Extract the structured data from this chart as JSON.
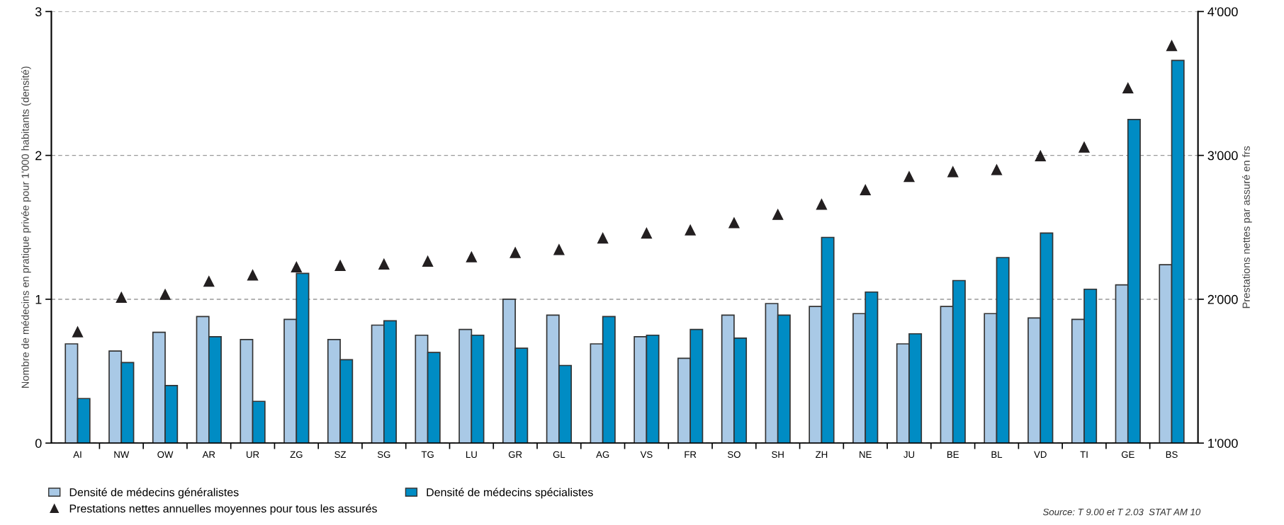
{
  "chart_data": {
    "type": "bar",
    "categories": [
      "AI",
      "NW",
      "OW",
      "AR",
      "UR",
      "ZG",
      "SZ",
      "SG",
      "TG",
      "LU",
      "GR",
      "GL",
      "AG",
      "VS",
      "FR",
      "SO",
      "SH",
      "ZH",
      "NE",
      "JU",
      "BE",
      "BL",
      "VD",
      "TI",
      "GE",
      "BS"
    ],
    "series": [
      {
        "name": "Densité de médecins généralistes",
        "color": "#a9c9e6",
        "values": [
          0.69,
          0.64,
          0.77,
          0.88,
          0.72,
          0.86,
          0.72,
          0.82,
          0.75,
          0.79,
          1.0,
          0.89,
          0.69,
          0.74,
          0.59,
          0.89,
          0.97,
          0.95,
          0.9,
          0.69,
          0.95,
          0.9,
          0.87,
          0.86,
          1.1,
          1.24
        ]
      },
      {
        "name": "Densité de médecins spécialistes",
        "color": "#008cc4",
        "values": [
          0.31,
          0.56,
          0.4,
          0.74,
          0.29,
          1.18,
          0.58,
          0.85,
          0.63,
          0.75,
          0.66,
          0.54,
          0.88,
          0.75,
          0.79,
          0.73,
          0.89,
          1.43,
          1.05,
          0.76,
          1.13,
          1.29,
          1.46,
          1.07,
          2.25,
          2.66
        ]
      },
      {
        "name": "Prestations nettes annuelles moyennes pour tous les assurés",
        "type": "scatter",
        "axis": "y2",
        "marker": "triangle",
        "color": "#231f20",
        "values": [
          1773,
          2013,
          2033,
          2124,
          2168,
          2224,
          2234,
          2244,
          2264,
          2294,
          2324,
          2345,
          2425,
          2459,
          2481,
          2531,
          2589,
          2660,
          2760,
          2852,
          2886,
          2900,
          2997,
          3057,
          3468,
          3763
        ]
      }
    ],
    "ylabel": "Nombre de médecins en pratique privée pour 1'000 habitants (densité)",
    "y2label": "Prestations nettes par assuré en frs",
    "ylim": [
      0,
      3
    ],
    "yticks": [
      0,
      1,
      2,
      3
    ],
    "y2lim": [
      1000,
      4000
    ],
    "y2ticks": [
      {
        "value": 1000,
        "label": "1'000"
      },
      {
        "value": 2000,
        "label": "2'000"
      },
      {
        "value": 3000,
        "label": "3'000"
      },
      {
        "value": 4000,
        "label": "4'000"
      }
    ],
    "grid": "y",
    "legend": "bottom",
    "annotations": [
      "Source: T 9.00 et T 2.03  STAT AM 10"
    ]
  }
}
